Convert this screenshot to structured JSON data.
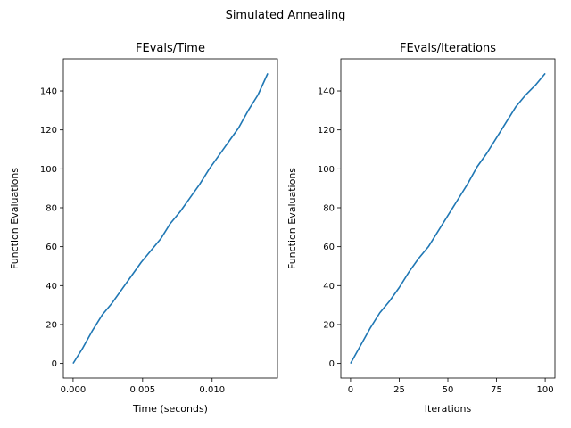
{
  "suptitle": "Simulated Annealing",
  "chart_data": [
    {
      "type": "line",
      "title": "FEvals/Time",
      "xlabel": "Time (seconds)",
      "ylabel": "Function Evaluations",
      "xlim": [
        -0.0007,
        0.0147
      ],
      "ylim": [
        -7.5,
        156.5
      ],
      "xticks": [
        0.0,
        0.005,
        0.01
      ],
      "xtick_labels": [
        "0.000",
        "0.005",
        "0.010"
      ],
      "yticks": [
        0,
        20,
        40,
        60,
        80,
        100,
        120,
        140
      ],
      "ytick_labels": [
        "0",
        "20",
        "40",
        "60",
        "80",
        "100",
        "120",
        "140"
      ],
      "series": [
        {
          "color": "#1f77b4",
          "x": [
            0.0,
            0.0007,
            0.0014,
            0.0021,
            0.0028,
            0.0035,
            0.0042,
            0.0049,
            0.0056,
            0.0063,
            0.007,
            0.0077,
            0.0084,
            0.0091,
            0.0098,
            0.0105,
            0.0112,
            0.0119,
            0.0126,
            0.0133,
            0.014
          ],
          "y": [
            0,
            8,
            17,
            25,
            31,
            38,
            45,
            52,
            58,
            64,
            72,
            78,
            85,
            92,
            100,
            107,
            114,
            121,
            130,
            138,
            149
          ]
        }
      ]
    },
    {
      "type": "line",
      "title": "FEvals/Iterations",
      "xlabel": "Iterations",
      "ylabel": "Function Evaluations",
      "xlim": [
        -5,
        105
      ],
      "ylim": [
        -7.5,
        156.5
      ],
      "xticks": [
        0,
        25,
        50,
        75,
        100
      ],
      "xtick_labels": [
        "0",
        "25",
        "50",
        "75",
        "100"
      ],
      "yticks": [
        0,
        20,
        40,
        60,
        80,
        100,
        120,
        140
      ],
      "ytick_labels": [
        "0",
        "20",
        "40",
        "60",
        "80",
        "100",
        "120",
        "140"
      ],
      "series": [
        {
          "color": "#1f77b4",
          "x": [
            0,
            5,
            10,
            15,
            20,
            25,
            30,
            35,
            40,
            45,
            50,
            55,
            60,
            65,
            70,
            75,
            80,
            85,
            90,
            95,
            100
          ],
          "y": [
            0,
            9,
            18,
            26,
            32,
            39,
            47,
            54,
            60,
            68,
            76,
            84,
            92,
            101,
            108,
            116,
            124,
            132,
            138,
            143,
            149
          ]
        }
      ]
    }
  ]
}
